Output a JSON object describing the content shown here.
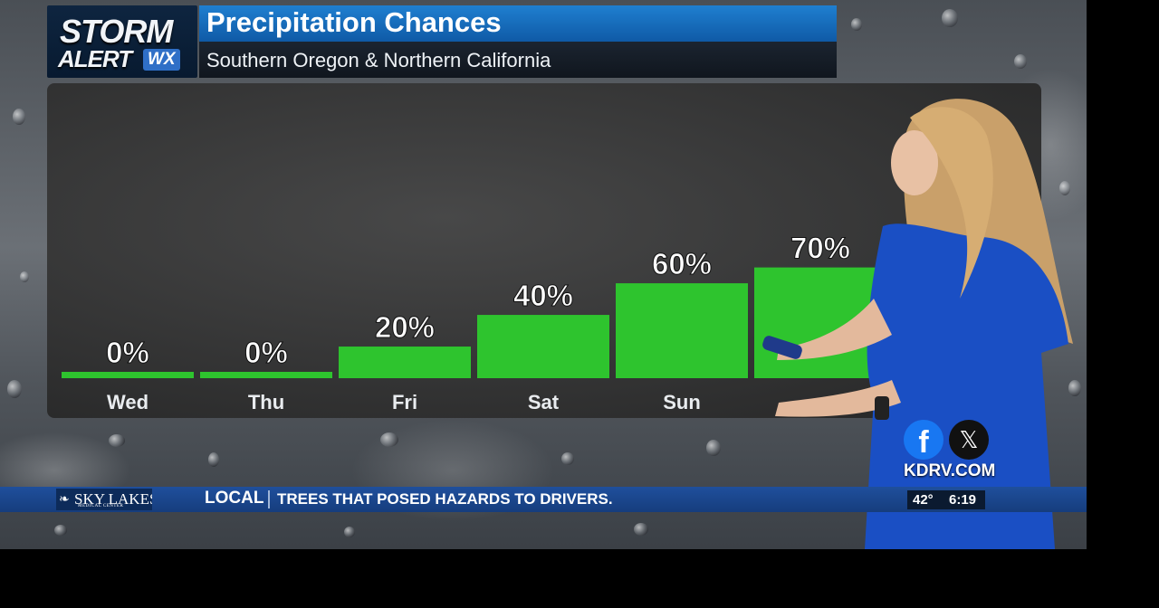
{
  "header": {
    "logo_line1": "STORM",
    "logo_line2": "ALERT",
    "logo_badge": "WX",
    "title": "Precipitation Chances",
    "subtitle": "Southern Oregon & Northern California"
  },
  "chart_data": {
    "type": "bar",
    "categories": [
      "Wed",
      "Thu",
      "Fri",
      "Sat",
      "Sun",
      ""
    ],
    "values": [
      0,
      0,
      20,
      40,
      60,
      70
    ],
    "data_labels": [
      "0%",
      "0%",
      "20%",
      "40%",
      "60%",
      "70%"
    ],
    "ylim": [
      0,
      100
    ],
    "bar_color": "#2ec42e"
  },
  "social": {
    "facebook_icon": "f",
    "x_icon": "𝕏",
    "site": "KDRV.COM"
  },
  "ticker": {
    "sponsor_name": "SKY LAKES",
    "sponsor_sub": "MEDICAL CENTER",
    "section": "LOCAL",
    "headline": "TREES THAT POSED HAZARDS TO DRIVERS.",
    "temperature": "42°",
    "time": "6:19"
  },
  "colors": {
    "title_bar": "#1f7fd0",
    "ticker": "#1f4f9c",
    "dress": "#1a4fc4"
  }
}
